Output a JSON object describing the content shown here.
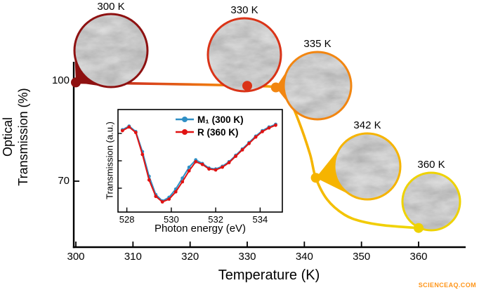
{
  "figure": {
    "xlabel": "Temperature (K)",
    "ylabel_line1": "Optical",
    "ylabel_line2": "Transmission (%)",
    "watermark": "SCIENCEAQ.COM"
  },
  "chart_data": [
    {
      "type": "line",
      "title": "Optical transmission vs temperature across the insulator-metal transition",
      "xlabel": "Temperature (K)",
      "ylabel": "Optical Transmission (%)",
      "xlim": [
        297,
        364
      ],
      "ylim": [
        52,
        104
      ],
      "xticks": [
        300,
        310,
        320,
        330,
        340,
        350,
        360
      ],
      "yticks": [
        70,
        100
      ],
      "grid": false,
      "color_gradient": [
        "#8e1111",
        "#d8401c",
        "#ef7a10",
        "#f6a800",
        "#f3c703",
        "#eed90a"
      ],
      "series": [
        {
          "name": "optical transmission",
          "x": [
            300,
            310,
            320,
            330,
            335,
            337,
            339,
            341,
            342,
            344,
            347,
            350,
            354,
            360
          ],
          "y": [
            99.5,
            99.2,
            98.9,
            98.5,
            98.0,
            95.5,
            88,
            78,
            71,
            64.5,
            60,
            58,
            56.8,
            56
          ]
        }
      ],
      "markers": [
        {
          "x": 300,
          "y": 99.5,
          "label": "300 K",
          "color": "#8e1111"
        },
        {
          "x": 330,
          "y": 98.5,
          "label": "330 K",
          "color": "#da3317"
        },
        {
          "x": 335,
          "y": 98.0,
          "label": "335 K",
          "color": "#f28611"
        },
        {
          "x": 342,
          "y": 71.0,
          "label": "342 K",
          "color": "#f6b400"
        },
        {
          "x": 360,
          "y": 56.0,
          "label": "360 K",
          "color": "#eed202"
        }
      ]
    },
    {
      "type": "line",
      "title": "Inset: transmission spectra",
      "xlabel": "Photon energy (eV)",
      "ylabel": "Transmission (a.u.)",
      "xlim": [
        527.6,
        535.0
      ],
      "ylim": [
        0,
        1
      ],
      "xticks": [
        528,
        530,
        532,
        534
      ],
      "legend_position": "top-right",
      "series": [
        {
          "name": "M₁ (300 K)",
          "color": "#2f8fc5",
          "x": [
            527.8,
            528.1,
            528.4,
            528.7,
            529.0,
            529.3,
            529.6,
            529.9,
            530.2,
            530.5,
            530.8,
            531.1,
            531.4,
            531.7,
            532.0,
            532.3,
            532.6,
            532.9,
            533.2,
            533.5,
            533.8,
            534.1,
            534.4,
            534.7
          ],
          "y": [
            0.84,
            0.88,
            0.82,
            0.6,
            0.33,
            0.13,
            0.06,
            0.1,
            0.19,
            0.31,
            0.43,
            0.51,
            0.47,
            0.42,
            0.41,
            0.44,
            0.49,
            0.56,
            0.63,
            0.7,
            0.77,
            0.83,
            0.87,
            0.9
          ]
        },
        {
          "name": "R (360 K)",
          "color": "#e01212",
          "x": [
            527.8,
            528.1,
            528.4,
            528.7,
            529.0,
            529.3,
            529.6,
            529.9,
            530.2,
            530.5,
            530.8,
            531.1,
            531.4,
            531.7,
            532.0,
            532.3,
            532.6,
            532.9,
            533.2,
            533.5,
            533.8,
            534.1,
            534.4,
            534.7
          ],
          "y": [
            0.83,
            0.87,
            0.81,
            0.57,
            0.29,
            0.11,
            0.05,
            0.08,
            0.16,
            0.27,
            0.39,
            0.49,
            0.46,
            0.41,
            0.4,
            0.43,
            0.48,
            0.55,
            0.62,
            0.69,
            0.76,
            0.82,
            0.86,
            0.89
          ]
        }
      ]
    }
  ]
}
